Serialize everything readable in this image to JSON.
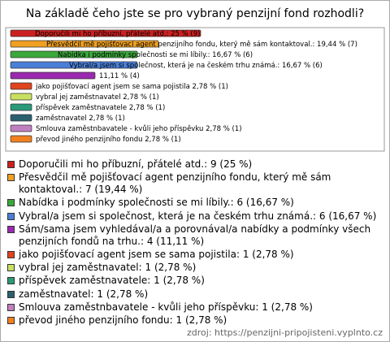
{
  "chart_data": {
    "type": "bar",
    "orientation": "horizontal",
    "title": "Na základě čeho jste se pro vybraný penzijní fond rozhodli?",
    "categories": [
      "Doporučili mi ho příbuzní, přátelé atd.: 9 (25 %)",
      "Přesvědčil mě pojišťovací agent penzijního fondu, který mě sám kontaktoval.: 7 (19,44 %)",
      "Nabídka i podmínky společnosti se mi líbily.: 6 (16,67 %)",
      "Vybral/a jsem si společnost, která je na českém trhu známá.: 6 (16,67 %)",
      "Sám/sama jsem vyhledával/a a porovnával/a nabídky a podmínky všech penzijních fondů na trhu.: 4 (11,11 %)",
      "jako pojišťovací agent jsem se sama pojistila: 1 (2,78 %)",
      "vybral jej zaměstnavatel: 1 (2,78 %)",
      "příspěvek zaměstnavatele: 1 (2,78 %)",
      "zaměstnavatel: 1 (2,78 %)",
      "Smlouva zaměstnbavatele - kvůli jeho příspěvku: 1 (2,78 %)",
      "převod jiného penzijního fondu: 1 (2,78 %)"
    ],
    "values": [
      9,
      7,
      6,
      6,
      4,
      1,
      1,
      1,
      1,
      1,
      1
    ],
    "value_labels": [
      "Doporučili mi ho příbuzní, přátelé atd.: 25 % (9)",
      "Přesvědčil mě pojišťovací agent penzijního fondu, který mě sám kontaktoval.: 19,44 % (7)",
      "Nabídka i podmínky společnosti se mi líbily.: 16,67 % (6)",
      "Vybral/a jsem si společnost, která je na českém trhu známá.: 16,67 % (6)",
      "11,11 % (4)",
      "jako pojišťovací agent jsem se sama pojistila 2,78 % (1)",
      "vybral jej zaměstnavatel 2,78 % (1)",
      "příspěvek zaměstnavatele 2,78 % (1)",
      "zaměstnavatel 2,78 % (1)",
      "Smlouva zaměstnbavatele - kvůli jeho příspěvku 2,78 % (1)",
      "převod jiného penzijního fondu 2,78 % (1)"
    ],
    "colors": [
      "#cc2020",
      "#f0a020",
      "#3aa83a",
      "#4a7fd8",
      "#9a28b0",
      "#e0441c",
      "#c8e060",
      "#2a9a78",
      "#2a6070",
      "#c080c0",
      "#f08020"
    ],
    "source": "zdroj: https://penzijni-pripojisteni.vyplnto.cz"
  }
}
